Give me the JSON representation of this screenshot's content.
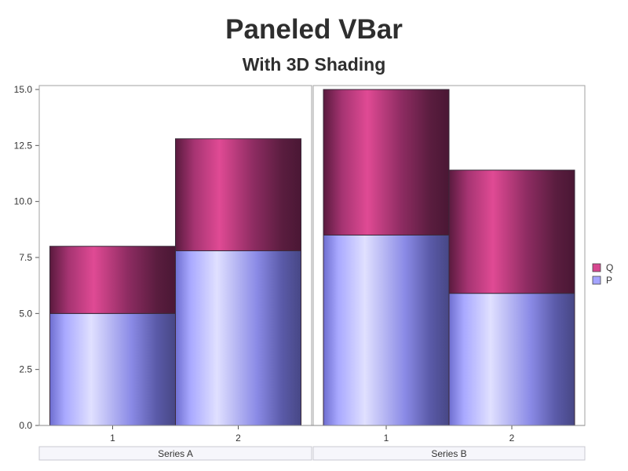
{
  "title": "Paneled VBar",
  "subtitle": "With 3D Shading",
  "colors": {
    "P": "#a4a4ff",
    "Q": "#d6478f"
  },
  "chart_data": {
    "type": "bar",
    "stacked": true,
    "ylim": [
      0,
      15
    ],
    "yticks": [
      "0.0",
      "2.5",
      "5.0",
      "7.5",
      "10.0",
      "12.5",
      "15.0"
    ],
    "legend": {
      "placement": "right",
      "entries": [
        "Q",
        "P"
      ]
    },
    "panels": [
      {
        "name": "Series A",
        "categories": [
          "1",
          "2"
        ],
        "series": [
          {
            "name": "P",
            "values": [
              5.0,
              7.8
            ]
          },
          {
            "name": "Q",
            "values": [
              3.0,
              5.0
            ]
          }
        ]
      },
      {
        "name": "Series B",
        "categories": [
          "1",
          "2"
        ],
        "series": [
          {
            "name": "P",
            "values": [
              8.5,
              5.9
            ]
          },
          {
            "name": "Q",
            "values": [
              6.5,
              5.5
            ]
          }
        ]
      }
    ]
  }
}
